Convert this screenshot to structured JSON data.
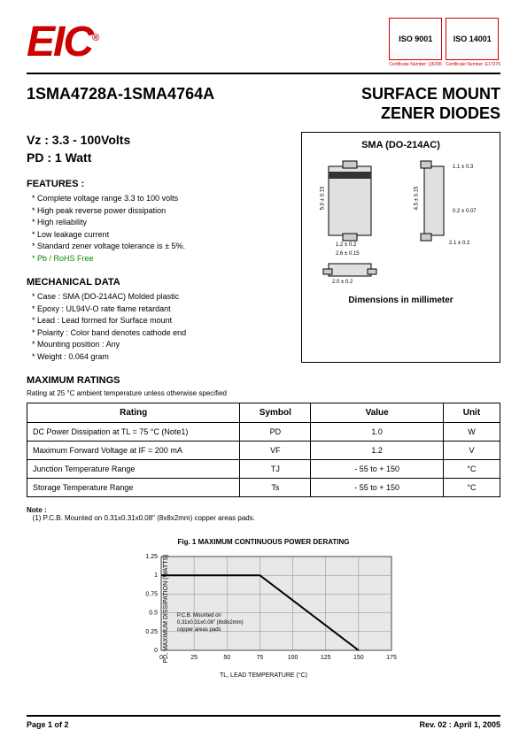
{
  "header": {
    "logo_text": "EIC",
    "logo_reg": "®",
    "cert1": {
      "iso": "ISO 9001",
      "sub": "Certificate Number: Q6395"
    },
    "cert2": {
      "iso": "ISO 14001",
      "sub": "Certificate Number: E17276"
    }
  },
  "title": {
    "part_range": "1SMA4728A-1SMA4764A",
    "product_type_l1": "SURFACE MOUNT",
    "product_type_l2": "ZENER DIODES"
  },
  "specs": {
    "vz_label": "Vz : 3.3 - 100Volts",
    "pd_label": "PD : 1 Watt"
  },
  "features": {
    "heading": "FEATURES :",
    "items": [
      "Complete voltage range 3.3 to 100 volts",
      "High peak reverse power dissipation",
      "High reliability",
      "Low leakage current",
      "Standard zener voltage tolerance is ± 5%."
    ],
    "rohs": "Pb / RoHS Free"
  },
  "mechanical": {
    "heading": "MECHANICAL DATA",
    "items": [
      "Case : SMA (DO-214AC) Molded plastic",
      "Epoxy : UL94V-O rate flame retardant",
      "Lead : Lead formed for Surface mount",
      "Polarity : Color band denotes cathode end",
      "Mounting position : Any",
      "Weight : 0.064 gram"
    ]
  },
  "package": {
    "title": "SMA (DO-214AC)",
    "dim_label": "Dimensions in millimeter",
    "dims": {
      "d1": "5.0 ± 0.15",
      "d2": "4.5 ± 0.15",
      "d3": "1.1 ± 0.3",
      "d4": "1.2 ± 0.2",
      "d5": "2.6 ± 0.15",
      "d6": "2.1 ± 0.2",
      "d7": "0.2 ± 0.07",
      "d8": "2.0 ± 0.2"
    }
  },
  "ratings": {
    "heading": "MAXIMUM RATINGS",
    "sub": "Rating at 25 °C ambient temperature unless otherwise specified",
    "headers": {
      "rating": "Rating",
      "symbol": "Symbol",
      "value": "Value",
      "unit": "Unit"
    },
    "rows": [
      {
        "rating": "DC Power Dissipation at TL = 75 °C (Note1)",
        "symbol": "PD",
        "value": "1.0",
        "unit": "W"
      },
      {
        "rating": "Maximum Forward Voltage at IF = 200 mA",
        "symbol": "VF",
        "value": "1.2",
        "unit": "V"
      },
      {
        "rating": "Junction Temperature Range",
        "symbol": "TJ",
        "value": "- 55 to + 150",
        "unit": "°C"
      },
      {
        "rating": "Storage Temperature Range",
        "symbol": "Ts",
        "value": "- 55 to + 150",
        "unit": "°C"
      }
    ]
  },
  "note": {
    "label": "Note :",
    "text": "(1) P.C.B. Mounted on 0.31x0.31x0.08\" (8x8x2mm) copper areas pads."
  },
  "chart": {
    "title": "Fig. 1   MAXIMUM CONTINUOUS POWER DERATING",
    "ylabel": "PD, MAXIMUM DISSIPATION (WATTS)",
    "xlabel": "TL, LEAD TEMPERATURE (°C)",
    "x_min": 0,
    "x_max": 175,
    "x_step": 25,
    "y_min": 0,
    "y_max": 1.25,
    "y_step": 0.25,
    "line_points": [
      [
        0,
        1.0
      ],
      [
        75,
        1.0
      ],
      [
        150,
        0
      ]
    ],
    "note_lines": [
      "P.C.B. Mounted on",
      "0.31x0.31x0.08\" (8x8x2mm)",
      "copper areas pads"
    ],
    "plot_bg": "#e8e8e8",
    "grid_color": "#888",
    "line_color": "#000",
    "line_width": 2
  },
  "footer": {
    "page": "Page 1 of 2",
    "rev": "Rev. 02 : April 1, 2005"
  }
}
